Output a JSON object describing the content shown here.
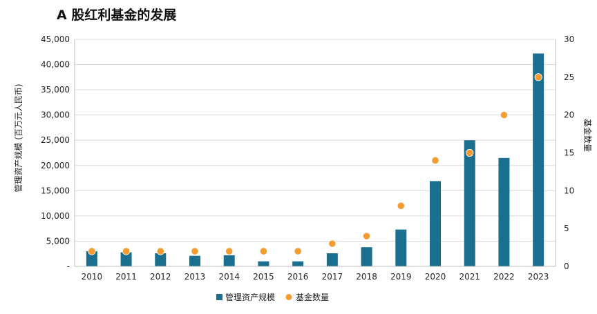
{
  "chart_data": {
    "type": "bar",
    "title": "A 股红利基金的发展",
    "categories": [
      "2010",
      "2011",
      "2012",
      "2013",
      "2014",
      "2015",
      "2016",
      "2017",
      "2018",
      "2019",
      "2020",
      "2021",
      "2022",
      "2023"
    ],
    "series": [
      {
        "name": "管理资产规模",
        "type": "bar",
        "axis": "left",
        "color": "#1b6f8e",
        "values": [
          3000,
          2800,
          2600,
          2100,
          2200,
          1000,
          1000,
          2600,
          3800,
          7300,
          16900,
          25000,
          21500,
          42200
        ]
      },
      {
        "name": "基金数量",
        "type": "scatter",
        "axis": "right",
        "color": "#f39c32",
        "values": [
          2,
          2,
          2,
          2,
          2,
          2,
          2,
          3,
          4,
          8,
          14,
          15,
          20,
          25
        ]
      }
    ],
    "ylabel": "管理资产规模 (百万元人民币)",
    "y2label": "基金数量",
    "ylim": [
      0,
      45000
    ],
    "y2lim": [
      0,
      30
    ],
    "yticks": [
      "-",
      "5,000",
      "10,000",
      "15,000",
      "20,000",
      "25,000",
      "30,000",
      "35,000",
      "40,000",
      "45,000"
    ],
    "y2ticks": [
      "0",
      "5",
      "10",
      "15",
      "20",
      "25",
      "30"
    ],
    "grid": true,
    "legend": "bottom"
  }
}
